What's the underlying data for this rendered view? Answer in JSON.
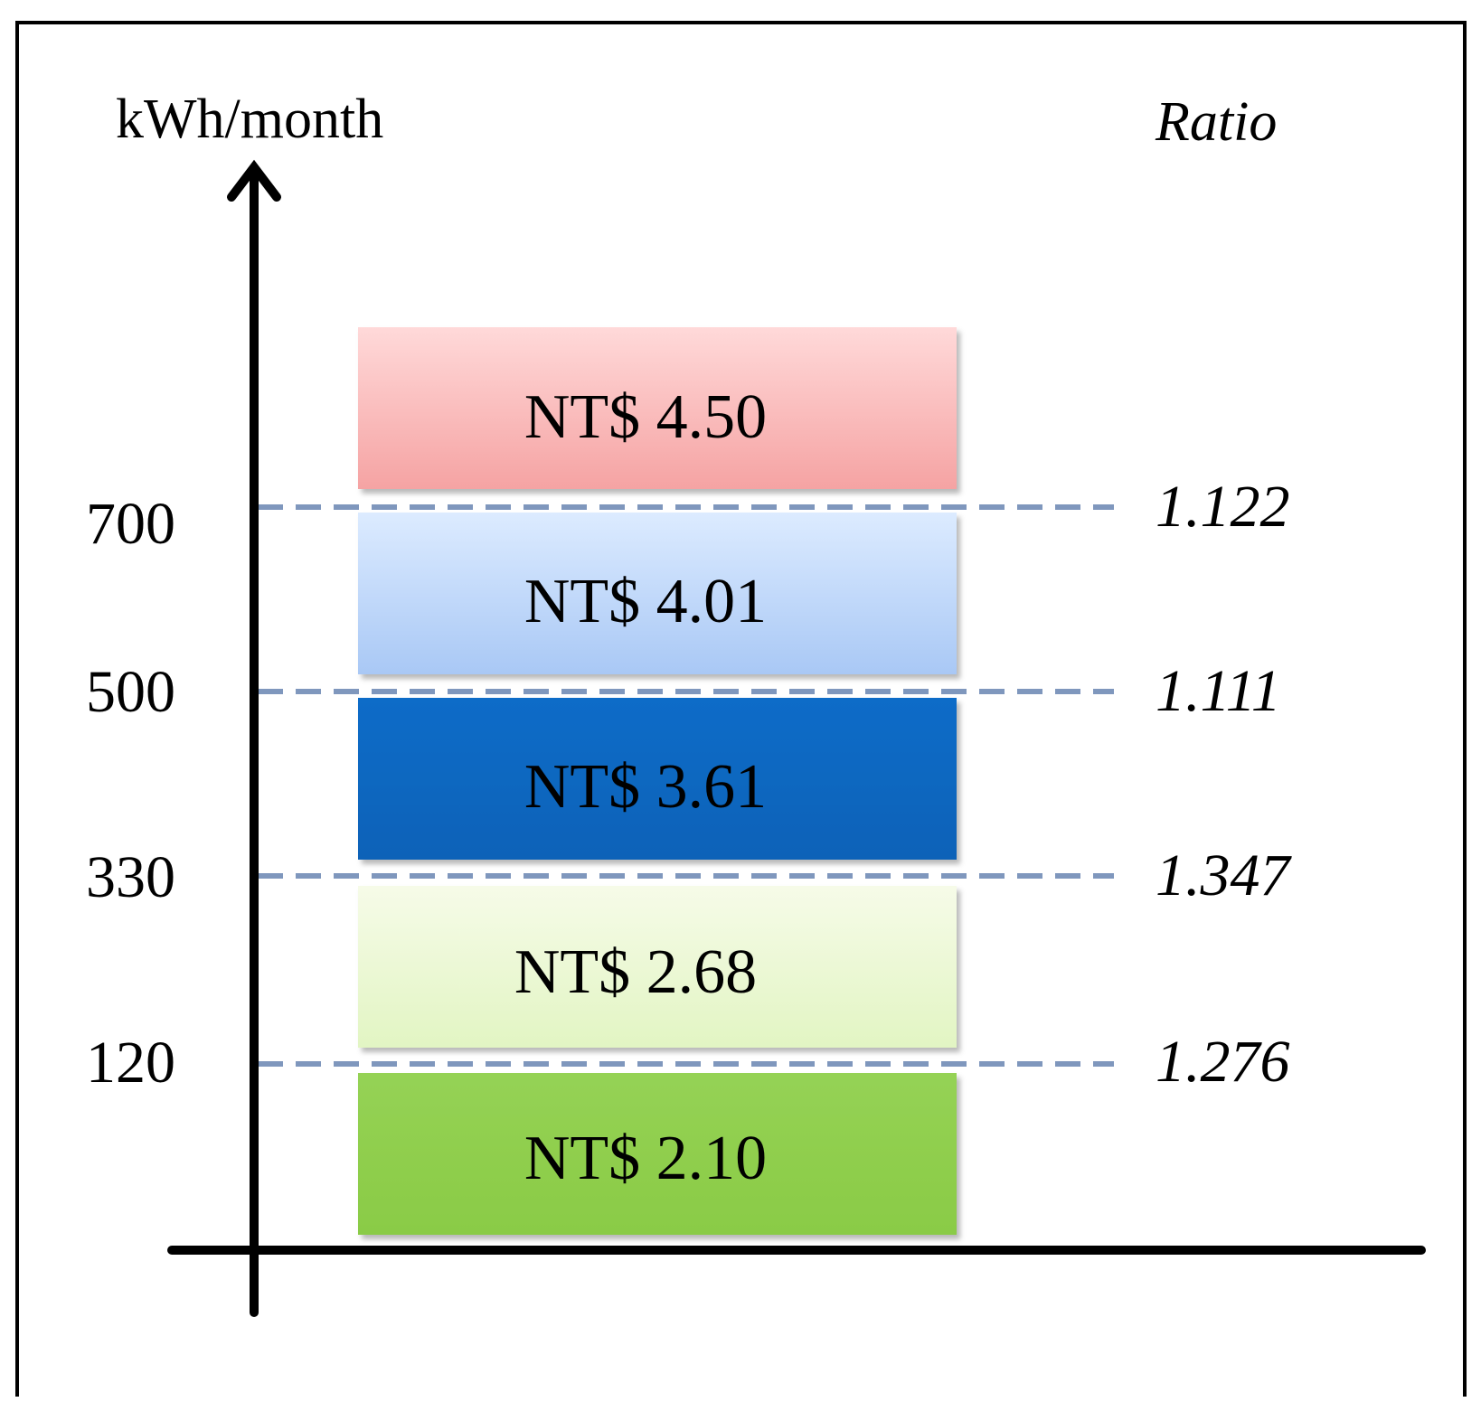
{
  "axis": {
    "y_label": "kWh/month",
    "ratio_label": "Ratio"
  },
  "thresholds": [
    {
      "value": "700",
      "ratio": "1.122"
    },
    {
      "value": "500",
      "ratio": "1.111"
    },
    {
      "value": "330",
      "ratio": "1.347"
    },
    {
      "value": "120",
      "ratio": "1.276"
    }
  ],
  "tiers": [
    {
      "label": "NT$ 4.50",
      "fill_top": "#ffd9d9",
      "fill_bottom": "#f5a3a3"
    },
    {
      "label": "NT$ 4.01",
      "fill_top": "#dcebff",
      "fill_bottom": "#a9c8f5"
    },
    {
      "label": "NT$ 3.61",
      "fill_top": "#0a6cc8",
      "fill_bottom": "#0a62b8"
    },
    {
      "label": "NT$ 2.68",
      "fill_top": "#f6fbe8",
      "fill_bottom": "#e2f5c3"
    },
    {
      "label": "NT$ 2.10",
      "fill_top": "#95d255",
      "fill_bottom": "#8acb46"
    }
  ],
  "colors": {
    "axis": "#000000",
    "dash": "#7f97bd",
    "border": "#000000"
  }
}
